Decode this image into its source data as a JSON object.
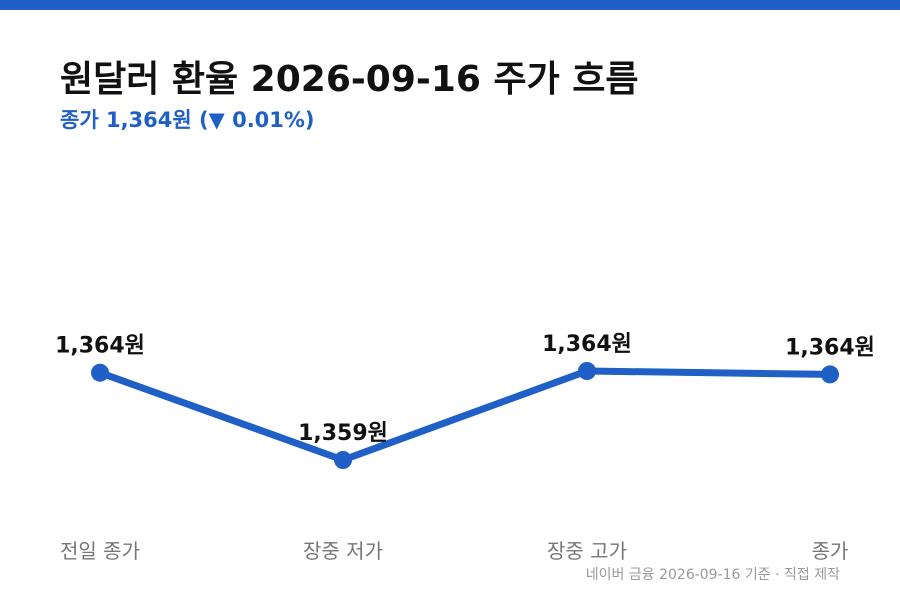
{
  "title": "원달러 환율 2026-09-16 주가 흐름",
  "subtitle": {
    "prefix": "종가 1,364원 (",
    "arrow": "▼",
    "change": " 0.01%)"
  },
  "footer": "네이버 금융 2026-09-16 기준 · 직접 제작",
  "colors": {
    "accent": "#1f5fc6",
    "text": "#111111",
    "muted": "#777777"
  },
  "chart_data": {
    "type": "line",
    "categories": [
      "전일 종가",
      "장중 저가",
      "장중 고가",
      "종가"
    ],
    "values": [
      1364.1,
      1359.0,
      1364.2,
      1364.0
    ],
    "data_labels": [
      "1,364원",
      "1,359원",
      "1,364원",
      "1,364원"
    ],
    "grid": false,
    "legend": "none"
  }
}
